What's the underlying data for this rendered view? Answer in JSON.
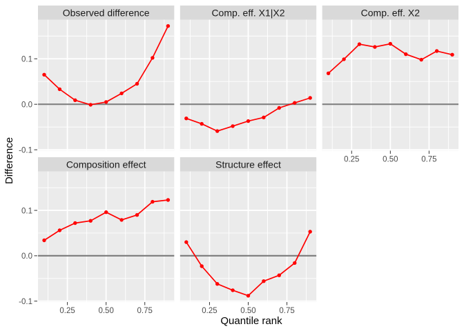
{
  "figure_styles": {
    "background": "#FFFFFF",
    "panel_background": "#EBEBEB",
    "strip_background": "#D9D9D9",
    "strip_text_color": "#1A1A1A",
    "grid_color": "#FFFFFF",
    "axis_text_color": "#4D4D4D",
    "axis_tick_color": "#333333",
    "axis_title_color": "#000000",
    "zero_line_color": "#808080",
    "series_color": "#FF0000"
  },
  "chart_data": {
    "type": "line",
    "title": "",
    "xlabel": "Quantile rank",
    "ylabel": "Difference",
    "legend": "none",
    "grid": true,
    "x": [
      0.1,
      0.2,
      0.3,
      0.4,
      0.5,
      0.6,
      0.7,
      0.8,
      0.9
    ],
    "xlim": [
      0.06,
      0.94
    ],
    "ylim": [
      -0.102,
      0.186
    ],
    "x_ticks": [
      0.25,
      0.5,
      0.75
    ],
    "x_tick_labels": [
      "0.25",
      "0.50",
      "0.75"
    ],
    "x_minor_ticks": [
      0.125,
      0.375,
      0.625,
      0.875
    ],
    "y_ticks": [
      0.1,
      0.0,
      -0.1
    ],
    "y_tick_labels": [
      "0.1",
      "0.0",
      "-0.1"
    ],
    "y_minor_ticks": [
      0.15,
      0.05,
      -0.05
    ],
    "facets": [
      {
        "label": "Observed difference",
        "row": 0,
        "col": 0,
        "y_axis": true,
        "x_axis": false,
        "values": [
          0.065,
          0.033,
          0.009,
          -0.001,
          0.005,
          0.024,
          0.045,
          0.102,
          0.172
        ]
      },
      {
        "label": "Comp. eff. X1|X2",
        "row": 0,
        "col": 1,
        "y_axis": false,
        "x_axis": false,
        "values": [
          -0.031,
          -0.043,
          -0.059,
          -0.048,
          -0.037,
          -0.029,
          -0.008,
          0.003,
          0.014
        ]
      },
      {
        "label": "Comp. eff. X2",
        "row": 0,
        "col": 2,
        "y_axis": false,
        "x_axis": true,
        "values": [
          0.068,
          0.099,
          0.132,
          0.126,
          0.133,
          0.11,
          0.098,
          0.117,
          0.109
        ]
      },
      {
        "label": "Composition effect",
        "row": 1,
        "col": 0,
        "y_axis": true,
        "x_axis": true,
        "values": [
          0.034,
          0.056,
          0.072,
          0.077,
          0.096,
          0.079,
          0.09,
          0.119,
          0.123
        ]
      },
      {
        "label": "Structure effect",
        "row": 1,
        "col": 1,
        "y_axis": false,
        "x_axis": true,
        "values": [
          0.03,
          -0.023,
          -0.062,
          -0.076,
          -0.088,
          -0.056,
          -0.043,
          -0.016,
          0.053
        ]
      }
    ]
  }
}
